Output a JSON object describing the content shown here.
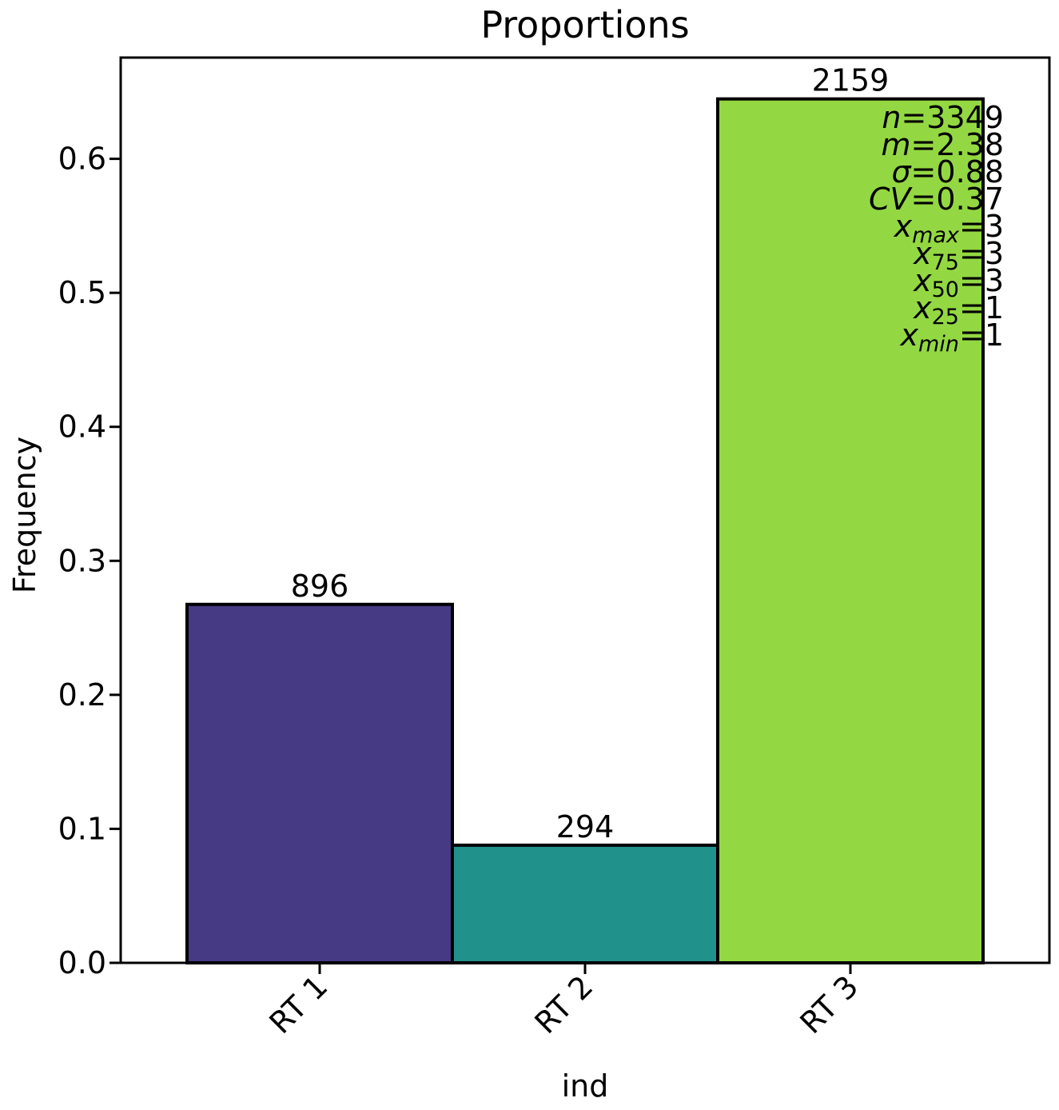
{
  "chart_data": {
    "type": "bar",
    "title": "Proportions",
    "xlabel": "ind",
    "ylabel": "Frequency",
    "categories": [
      "RT 1",
      "RT 2",
      "RT 3"
    ],
    "values": [
      0.2675,
      0.0878,
      0.6447
    ],
    "counts": [
      896,
      294,
      2159
    ],
    "count_labels": [
      "896",
      "294",
      "2159"
    ],
    "colors": [
      "#453a83",
      "#21918c",
      "#93d842"
    ],
    "ylim": [
      0,
      0.677
    ],
    "yticks": [
      0.0,
      0.1,
      0.2,
      0.3,
      0.4,
      0.5,
      0.6
    ],
    "ytick_labels": [
      "0.0",
      "0.1",
      "0.2",
      "0.3",
      "0.4",
      "0.5",
      "0.6"
    ],
    "grid": false,
    "legend": "none",
    "stats": {
      "n": "3349",
      "m": "2.38",
      "sigma": "0.88",
      "cv": "0.37",
      "x_max": "3",
      "x_75": "3",
      "x_50": "3",
      "x_25": "1",
      "x_min": "1"
    },
    "stat_symbols": {
      "n": "n",
      "m": "m",
      "sigma": "σ",
      "cv": "CV",
      "x": "x",
      "sub_max": "max",
      "sub_75": "75",
      "sub_50": "50",
      "sub_25": "25",
      "sub_min": "min",
      "eq": "="
    }
  }
}
